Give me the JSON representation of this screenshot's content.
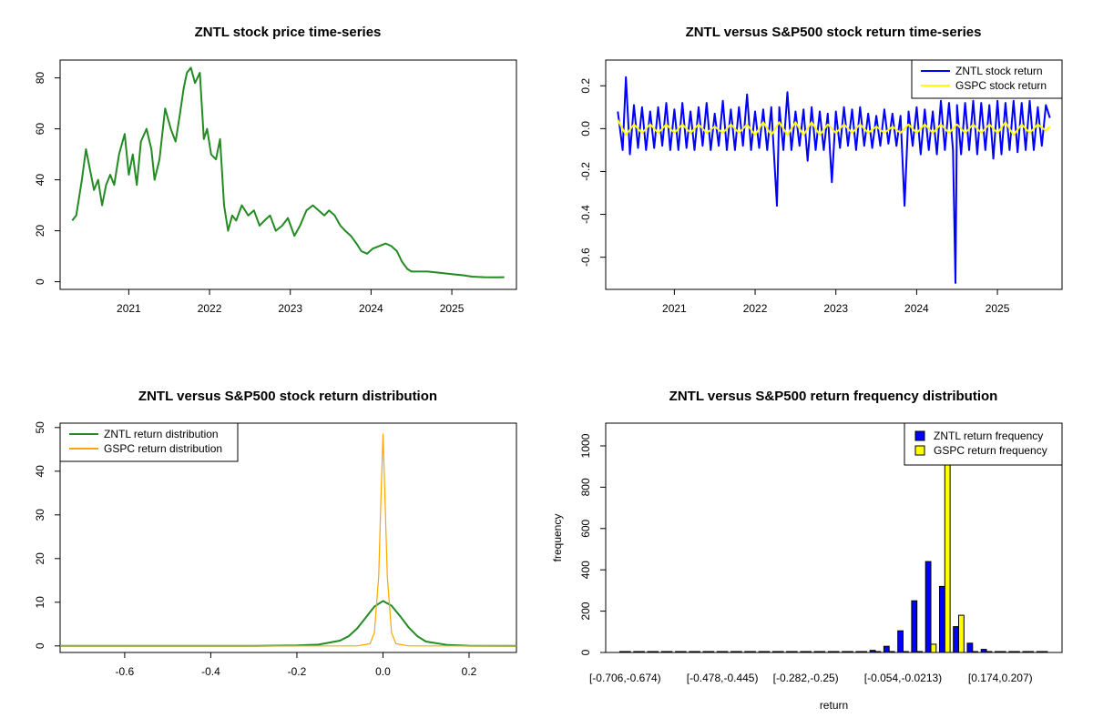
{
  "chart_data": [
    {
      "id": "price",
      "type": "line",
      "title": "ZNTL stock price time-series",
      "xlabel": "",
      "ylabel": "",
      "xlim": [
        2020.15,
        2025.8
      ],
      "ylim": [
        -3,
        87
      ],
      "x_ticks": [
        2021,
        2022,
        2023,
        2024,
        2025
      ],
      "x_tick_labels": [
        "2021",
        "2022",
        "2023",
        "2024",
        "2025"
      ],
      "y_ticks": [
        0,
        20,
        40,
        60,
        80
      ],
      "y_tick_labels": [
        "0",
        "20",
        "40",
        "60",
        "80"
      ],
      "grid": false,
      "legend": "none",
      "series": [
        {
          "color": "#228B22",
          "x": [
            2020.3,
            2020.35,
            2020.42,
            2020.47,
            2020.52,
            2020.57,
            2020.62,
            2020.67,
            2020.72,
            2020.77,
            2020.82,
            2020.88,
            2020.95,
            2021.0,
            2021.05,
            2021.1,
            2021.15,
            2021.22,
            2021.28,
            2021.32,
            2021.38,
            2021.45,
            2021.52,
            2021.58,
            2021.63,
            2021.68,
            2021.72,
            2021.77,
            2021.82,
            2021.88,
            2021.93,
            2021.97,
            2022.02,
            2022.08,
            2022.13,
            2022.18,
            2022.23,
            2022.28,
            2022.33,
            2022.4,
            2022.48,
            2022.55,
            2022.62,
            2022.68,
            2022.75,
            2022.82,
            2022.9,
            2022.97,
            2023.05,
            2023.12,
            2023.2,
            2023.28,
            2023.35,
            2023.42,
            2023.48,
            2023.55,
            2023.62,
            2023.68,
            2023.75,
            2023.82,
            2023.88,
            2023.95,
            2024.02,
            2024.1,
            2024.18,
            2024.25,
            2024.32,
            2024.38,
            2024.45,
            2024.5,
            2024.58,
            2024.7,
            2024.85,
            2025.0,
            2025.15,
            2025.25,
            2025.4,
            2025.55,
            2025.65
          ],
          "y": [
            24,
            26,
            40,
            52,
            44,
            36,
            40,
            30,
            38,
            42,
            38,
            50,
            58,
            42,
            50,
            38,
            55,
            60,
            52,
            40,
            48,
            68,
            60,
            55,
            65,
            76,
            82,
            84,
            78,
            82,
            56,
            60,
            50,
            48,
            56,
            30,
            20,
            26,
            24,
            30,
            26,
            28,
            22,
            24,
            26,
            20,
            22,
            25,
            18,
            22,
            28,
            30,
            28,
            26,
            28,
            26,
            22,
            20,
            18,
            15,
            12,
            11,
            13,
            14,
            15,
            14,
            12,
            8,
            5,
            4,
            4,
            4,
            3.5,
            3,
            2.5,
            2,
            1.8,
            1.7,
            1.8
          ]
        }
      ]
    },
    {
      "id": "returns",
      "type": "line",
      "title": "ZNTL versus S&P500 stock return time-series",
      "xlabel": "",
      "ylabel": "",
      "xlim": [
        2020.15,
        2025.8
      ],
      "ylim": [
        -0.75,
        0.32
      ],
      "x_ticks": [
        2021,
        2022,
        2023,
        2024,
        2025
      ],
      "x_tick_labels": [
        "2021",
        "2022",
        "2023",
        "2024",
        "2025"
      ],
      "y_ticks": [
        -0.6,
        -0.4,
        -0.2,
        0.0,
        0.2
      ],
      "y_tick_labels": [
        "-0.6",
        "-0.4",
        "-0.2",
        "0.0",
        "0.2"
      ],
      "grid": false,
      "legend": "top-right",
      "series": [
        {
          "name": "ZNTL stock return",
          "color": "#0000FF",
          "x": [
            2020.3,
            2020.36,
            2020.4,
            2020.45,
            2020.5,
            2020.55,
            2020.6,
            2020.65,
            2020.7,
            2020.75,
            2020.8,
            2020.85,
            2020.9,
            2020.95,
            2021.0,
            2021.05,
            2021.1,
            2021.15,
            2021.2,
            2021.25,
            2021.3,
            2021.35,
            2021.4,
            2021.45,
            2021.5,
            2021.55,
            2021.6,
            2021.65,
            2021.7,
            2021.75,
            2021.8,
            2021.85,
            2021.9,
            2021.95,
            2022.0,
            2022.05,
            2022.1,
            2022.15,
            2022.2,
            2022.27,
            2022.3,
            2022.35,
            2022.4,
            2022.45,
            2022.5,
            2022.55,
            2022.6,
            2022.65,
            2022.7,
            2022.75,
            2022.8,
            2022.85,
            2022.9,
            2022.95,
            2023.0,
            2023.05,
            2023.1,
            2023.15,
            2023.2,
            2023.25,
            2023.3,
            2023.35,
            2023.4,
            2023.45,
            2023.5,
            2023.55,
            2023.6,
            2023.65,
            2023.7,
            2023.75,
            2023.8,
            2023.85,
            2023.9,
            2023.95,
            2024.0,
            2024.05,
            2024.1,
            2024.15,
            2024.2,
            2024.25,
            2024.3,
            2024.35,
            2024.4,
            2024.45,
            2024.48,
            2024.5,
            2024.55,
            2024.6,
            2024.65,
            2024.7,
            2024.75,
            2024.8,
            2024.85,
            2024.9,
            2024.95,
            2025.0,
            2025.05,
            2025.1,
            2025.15,
            2025.2,
            2025.25,
            2025.3,
            2025.35,
            2025.4,
            2025.45,
            2025.5,
            2025.55,
            2025.6,
            2025.65
          ],
          "y": [
            0.08,
            -0.1,
            0.24,
            -0.12,
            0.11,
            -0.09,
            0.1,
            -0.1,
            0.08,
            -0.09,
            0.1,
            -0.08,
            0.12,
            -0.1,
            0.09,
            -0.1,
            0.12,
            -0.09,
            0.08,
            -0.1,
            0.1,
            -0.08,
            0.12,
            -0.1,
            0.07,
            -0.08,
            0.13,
            -0.1,
            0.09,
            -0.1,
            0.1,
            -0.08,
            0.16,
            -0.1,
            0.08,
            -0.09,
            0.09,
            -0.1,
            0.1,
            -0.36,
            0.1,
            -0.1,
            0.17,
            -0.1,
            0.08,
            -0.08,
            0.09,
            -0.15,
            0.1,
            -0.1,
            0.08,
            -0.1,
            0.07,
            -0.25,
            0.08,
            -0.09,
            0.1,
            -0.08,
            0.09,
            -0.1,
            0.1,
            -0.08,
            0.07,
            -0.09,
            0.06,
            -0.08,
            0.09,
            -0.07,
            0.07,
            -0.08,
            0.06,
            -0.36,
            0.08,
            -0.08,
            0.1,
            -0.12,
            0.09,
            -0.1,
            0.08,
            -0.12,
            0.13,
            -0.1,
            0.12,
            -0.1,
            -0.72,
            0.11,
            -0.12,
            0.12,
            -0.1,
            0.13,
            -0.12,
            0.12,
            -0.1,
            0.11,
            -0.14,
            0.13,
            -0.12,
            0.12,
            -0.1,
            0.13,
            -0.11,
            0.12,
            -0.1,
            0.13,
            -0.1,
            0.1,
            -0.08,
            0.11,
            0.05
          ]
        },
        {
          "name": "GSPC stock return",
          "color": "#FFFF00",
          "x": [
            2020.3,
            2020.4,
            2020.5,
            2020.6,
            2020.7,
            2020.8,
            2020.9,
            2021.0,
            2021.1,
            2021.2,
            2021.3,
            2021.4,
            2021.5,
            2021.6,
            2021.7,
            2021.8,
            2021.9,
            2022.0,
            2022.1,
            2022.2,
            2022.3,
            2022.4,
            2022.5,
            2022.6,
            2022.7,
            2022.8,
            2022.9,
            2023.0,
            2023.1,
            2023.2,
            2023.3,
            2023.4,
            2023.5,
            2023.6,
            2023.7,
            2023.8,
            2023.9,
            2024.0,
            2024.1,
            2024.2,
            2024.3,
            2024.4,
            2024.5,
            2024.6,
            2024.7,
            2024.8,
            2024.9,
            2025.0,
            2025.1,
            2025.2,
            2025.3,
            2025.4,
            2025.5,
            2025.6,
            2025.65
          ],
          "y": [
            0.04,
            -0.03,
            0.02,
            -0.02,
            0.02,
            -0.02,
            0.02,
            -0.02,
            0.02,
            -0.02,
            0.02,
            -0.02,
            0.01,
            -0.02,
            0.02,
            -0.02,
            0.02,
            -0.03,
            0.03,
            -0.03,
            0.03,
            -0.03,
            0.03,
            -0.03,
            0.03,
            -0.03,
            0.02,
            -0.02,
            0.02,
            -0.02,
            0.02,
            -0.02,
            0.01,
            -0.02,
            0.01,
            -0.02,
            0.02,
            -0.02,
            0.02,
            -0.02,
            0.02,
            -0.02,
            0.02,
            -0.02,
            0.02,
            -0.02,
            0.02,
            -0.02,
            0.03,
            -0.03,
            0.02,
            -0.02,
            0.02,
            -0.01,
            0.01
          ]
        }
      ]
    },
    {
      "id": "density",
      "type": "line",
      "title": "ZNTL versus S&P500 stock return distribution",
      "xlabel": "",
      "ylabel": "",
      "xlim": [
        -0.75,
        0.31
      ],
      "ylim": [
        -1.5,
        51
      ],
      "x_ticks": [
        -0.6,
        -0.4,
        -0.2,
        0.0,
        0.2
      ],
      "x_tick_labels": [
        "-0.6",
        "-0.4",
        "-0.2",
        "0.0",
        "0.2"
      ],
      "y_ticks": [
        0,
        10,
        20,
        30,
        40,
        50
      ],
      "y_tick_labels": [
        "0",
        "10",
        "20",
        "30",
        "40",
        "50"
      ],
      "grid": false,
      "legend": "top-left",
      "series": [
        {
          "name": "ZNTL return distribution",
          "color": "#228B22",
          "x": [
            -0.75,
            -0.3,
            -0.2,
            -0.15,
            -0.1,
            -0.08,
            -0.06,
            -0.04,
            -0.02,
            0.0,
            0.02,
            0.04,
            0.06,
            0.08,
            0.1,
            0.15,
            0.2,
            0.31
          ],
          "y": [
            0,
            0,
            0.1,
            0.3,
            1.2,
            2.2,
            4.0,
            6.5,
            9.0,
            10.3,
            9.2,
            6.8,
            4.2,
            2.2,
            1.0,
            0.2,
            0.05,
            0
          ]
        },
        {
          "name": "GSPC return distribution",
          "color": "#FFA500",
          "x": [
            -0.75,
            -0.06,
            -0.03,
            -0.02,
            -0.01,
            -0.005,
            0.0,
            0.005,
            0.01,
            0.02,
            0.03,
            0.06,
            0.31
          ],
          "y": [
            0,
            0,
            0.5,
            3.0,
            16.0,
            33.0,
            48.5,
            33.0,
            16.0,
            3.0,
            0.5,
            0,
            0
          ]
        }
      ]
    },
    {
      "id": "histogram",
      "type": "bar",
      "title": "ZNTL versus S&P500 return frequency distribution",
      "xlabel": "return",
      "ylabel": "frequency",
      "ylim": [
        0,
        1110
      ],
      "y_ticks": [
        0,
        200,
        400,
        600,
        800,
        1000
      ],
      "y_tick_labels": [
        "0",
        "200",
        "400",
        "600",
        "800",
        "1000"
      ],
      "grid": false,
      "legend": "top-right",
      "categories": [
        "[-0.706,-0.674)",
        "",
        "",
        "",
        "",
        "",
        "",
        "[-0.478,-0.445)",
        "",
        "",
        "",
        "",
        "",
        "[-0.282,-0.25)",
        "",
        "",
        "",
        "",
        "",
        "",
        "[-0.054,-0.0213)",
        "",
        "",
        "",
        "",
        "",
        "",
        "[0.174,0.207)",
        "",
        "",
        ""
      ],
      "series": [
        {
          "name": "ZNTL return frequency",
          "color": "#0000FF",
          "values": [
            1,
            0,
            0,
            0,
            0,
            0,
            0,
            0,
            0,
            0,
            0,
            0,
            0,
            0,
            0,
            1,
            2,
            3,
            10,
            30,
            105,
            250,
            440,
            320,
            125,
            45,
            15,
            4,
            2,
            1,
            1
          ]
        },
        {
          "name": "GSPC return frequency",
          "color": "#FFFF00",
          "values": [
            0,
            0,
            0,
            0,
            0,
            0,
            0,
            0,
            0,
            0,
            0,
            0,
            0,
            0,
            0,
            0,
            0,
            0,
            0,
            0,
            0,
            0,
            40,
            1080,
            180,
            0,
            0,
            0,
            0,
            0,
            0
          ]
        }
      ]
    }
  ]
}
